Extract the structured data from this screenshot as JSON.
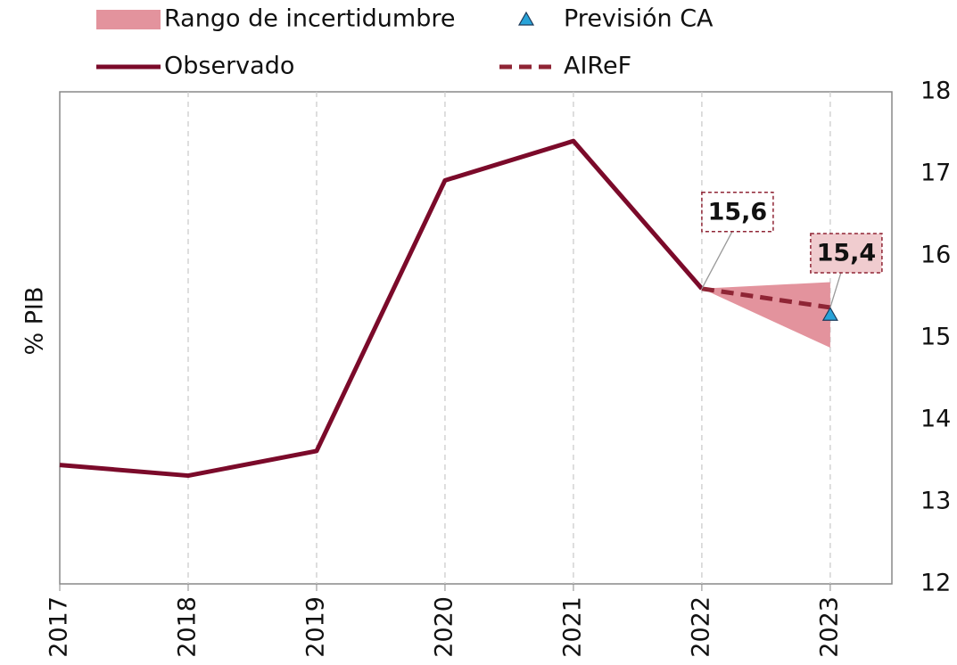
{
  "chart_data": {
    "type": "line",
    "y_axis_label": "% PIB",
    "x": [
      2017,
      2018,
      2019,
      2020,
      2021,
      2022,
      2023
    ],
    "xlim": [
      2017,
      2023.48
    ],
    "xticks": [
      2017,
      2018,
      2019,
      2020,
      2021,
      2022,
      2023
    ],
    "ylim": [
      12,
      18
    ],
    "yticks": [
      12,
      13,
      14,
      15,
      16,
      17,
      18
    ],
    "y_axis_side": "right",
    "grid": "x",
    "series": [
      {
        "name": "Rango de incertidumbre",
        "kind": "band",
        "color": "#e3939d",
        "lower": [
          null,
          null,
          null,
          null,
          null,
          15.6,
          14.88
        ],
        "upper": [
          null,
          null,
          null,
          null,
          null,
          15.6,
          15.68
        ]
      },
      {
        "name": "Previsión CA",
        "kind": "marker",
        "color": "#29a3d8",
        "values": [
          null,
          null,
          null,
          null,
          null,
          null,
          15.28
        ]
      },
      {
        "name": "Observado",
        "kind": "line",
        "color": "#7b0a2a",
        "values": [
          13.45,
          13.32,
          13.62,
          16.92,
          17.4,
          15.6,
          null
        ],
        "value_labels": [
          null,
          null,
          null,
          null,
          null,
          "15,6",
          null
        ]
      },
      {
        "name": "AIReF",
        "kind": "dashed",
        "color": "#8f2535",
        "values": [
          null,
          null,
          null,
          null,
          null,
          15.6,
          15.37
        ],
        "value_labels": [
          null,
          null,
          null,
          null,
          null,
          null,
          "15,4"
        ]
      }
    ]
  }
}
